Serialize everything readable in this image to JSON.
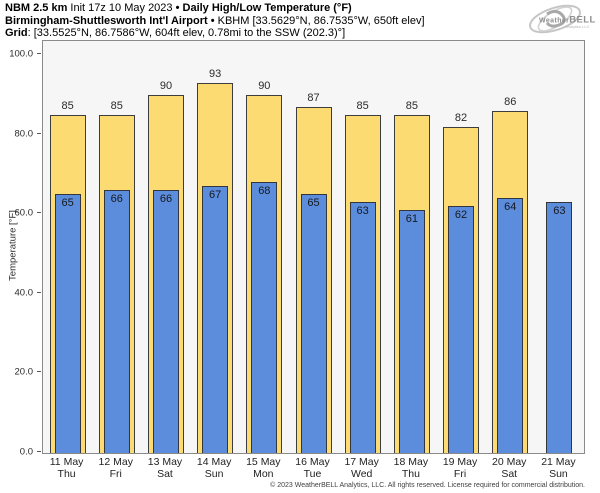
{
  "header": {
    "line1_bold1": "NBM 2.5 km",
    "line1_normal": " Init 17z 10 May 2023 ",
    "line1_bold2": "• Daily High/Low Temperature (°F)",
    "line2_bold": "Birmingham-Shuttlesworth Int'l Airport",
    "line2_sep": " • ",
    "line2_normal": "KBHM [33.5629°N, 86.7535°W, 650ft elev]",
    "line3_bold": "Grid",
    "line3_normal": ": [33.5525°N, 86.7586°W, 604ft elev, 0.78mi to the SSW (202.3)°]"
  },
  "logo": {
    "weather": "Weather",
    "bell": "BELL",
    "sub": "Analytics LLC"
  },
  "footer": {
    "copyright": "© 2023 WeatherBELL Analytics, LLC. All rights reserved. License required for commercial distribution."
  },
  "chart_data": {
    "type": "bar",
    "title": "NBM 2.5 km Init 17z 10 May 2023 • Daily High/Low Temperature (°F)",
    "station": "Birmingham-Shuttlesworth Int'l Airport (KBHM)",
    "ylabel": "Temperature [°F]",
    "ylim": [
      0,
      103.5
    ],
    "grid": false,
    "yticks": {
      "values": [
        0,
        20,
        40,
        60,
        80,
        100
      ],
      "labels": [
        "0.0",
        "20.0",
        "40.0",
        "60.0",
        "80.0",
        "100.0"
      ]
    },
    "categories": [
      {
        "date": "11 May",
        "day": "Thu"
      },
      {
        "date": "12 May",
        "day": "Fri"
      },
      {
        "date": "13 May",
        "day": "Sat"
      },
      {
        "date": "14 May",
        "day": "Sun"
      },
      {
        "date": "15 May",
        "day": "Mon"
      },
      {
        "date": "16 May",
        "day": "Tue"
      },
      {
        "date": "17 May",
        "day": "Wed"
      },
      {
        "date": "18 May",
        "day": "Thu"
      },
      {
        "date": "19 May",
        "day": "Fri"
      },
      {
        "date": "20 May",
        "day": "Sat"
      },
      {
        "date": "21 May",
        "day": "Sun"
      }
    ],
    "series": [
      {
        "name": "Daily High",
        "color": "#fcdc72",
        "values": [
          85,
          85,
          90,
          93,
          90,
          87,
          85,
          85,
          82,
          86,
          null
        ]
      },
      {
        "name": "Daily Low",
        "color": "#5c8ddd",
        "values": [
          65,
          66,
          66,
          67,
          68,
          65,
          63,
          61,
          62,
          64,
          63
        ]
      }
    ]
  }
}
